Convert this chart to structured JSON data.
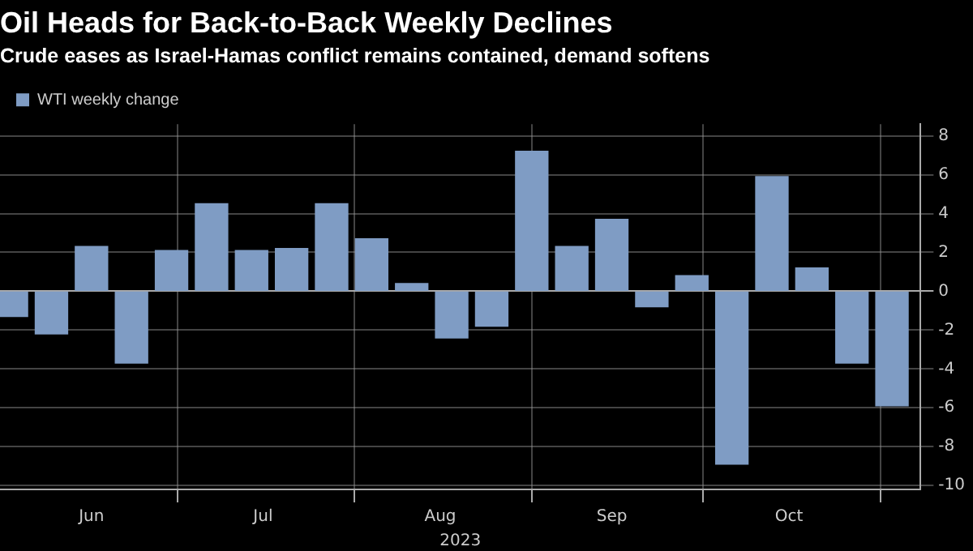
{
  "chart_data": {
    "type": "bar",
    "title": "Oil Heads for Back-to-Back Weekly Declines",
    "subtitle": "Crude eases as Israel-Hamas conflict remains contained, demand softens",
    "xlabel": "2023",
    "x": [
      "2023-06-02",
      "2023-06-09",
      "2023-06-16",
      "2023-06-23",
      "2023-06-30",
      "2023-07-07",
      "2023-07-14",
      "2023-07-21",
      "2023-07-28",
      "2023-08-04",
      "2023-08-11",
      "2023-08-18",
      "2023-08-25",
      "2023-09-01",
      "2023-09-08",
      "2023-09-15",
      "2023-09-22",
      "2023-09-29",
      "2023-10-06",
      "2023-10-13",
      "2023-10-20",
      "2023-10-27",
      "2023-11-03"
    ],
    "series": [
      {
        "name": "WTI weekly change",
        "color": "#7f9cc4",
        "values": [
          -1.3,
          -2.2,
          2.3,
          -3.7,
          2.1,
          4.5,
          2.1,
          2.2,
          4.5,
          2.7,
          0.4,
          -2.4,
          -1.8,
          7.2,
          2.3,
          3.7,
          -0.8,
          0.8,
          -8.9,
          5.9,
          1.2,
          -3.7,
          -5.9
        ]
      }
    ],
    "xlim": [
      "2023-05-31",
      "2023-11-08"
    ],
    "xticks": [
      {
        "value": "2023-07-01",
        "label": null
      },
      {
        "value": "2023-08-01",
        "label": null
      },
      {
        "value": "2023-09-01",
        "label": null
      },
      {
        "value": "2023-10-01",
        "label": null
      },
      {
        "value": "2023-11-01",
        "label": null
      },
      {
        "value": "2023-06-16",
        "label": "Jun"
      },
      {
        "value": "2023-07-16",
        "label": "Jul"
      },
      {
        "value": "2023-08-16",
        "label": "Aug"
      },
      {
        "value": "2023-09-15",
        "label": "Sep"
      },
      {
        "value": "2023-10-16",
        "label": "Oct"
      }
    ],
    "ylim": [
      -10.2,
      8.6
    ],
    "yticks": [
      -10,
      -8,
      -6,
      -4,
      -2,
      0,
      2,
      4,
      6,
      8
    ],
    "grid": true,
    "legend": "top left"
  }
}
